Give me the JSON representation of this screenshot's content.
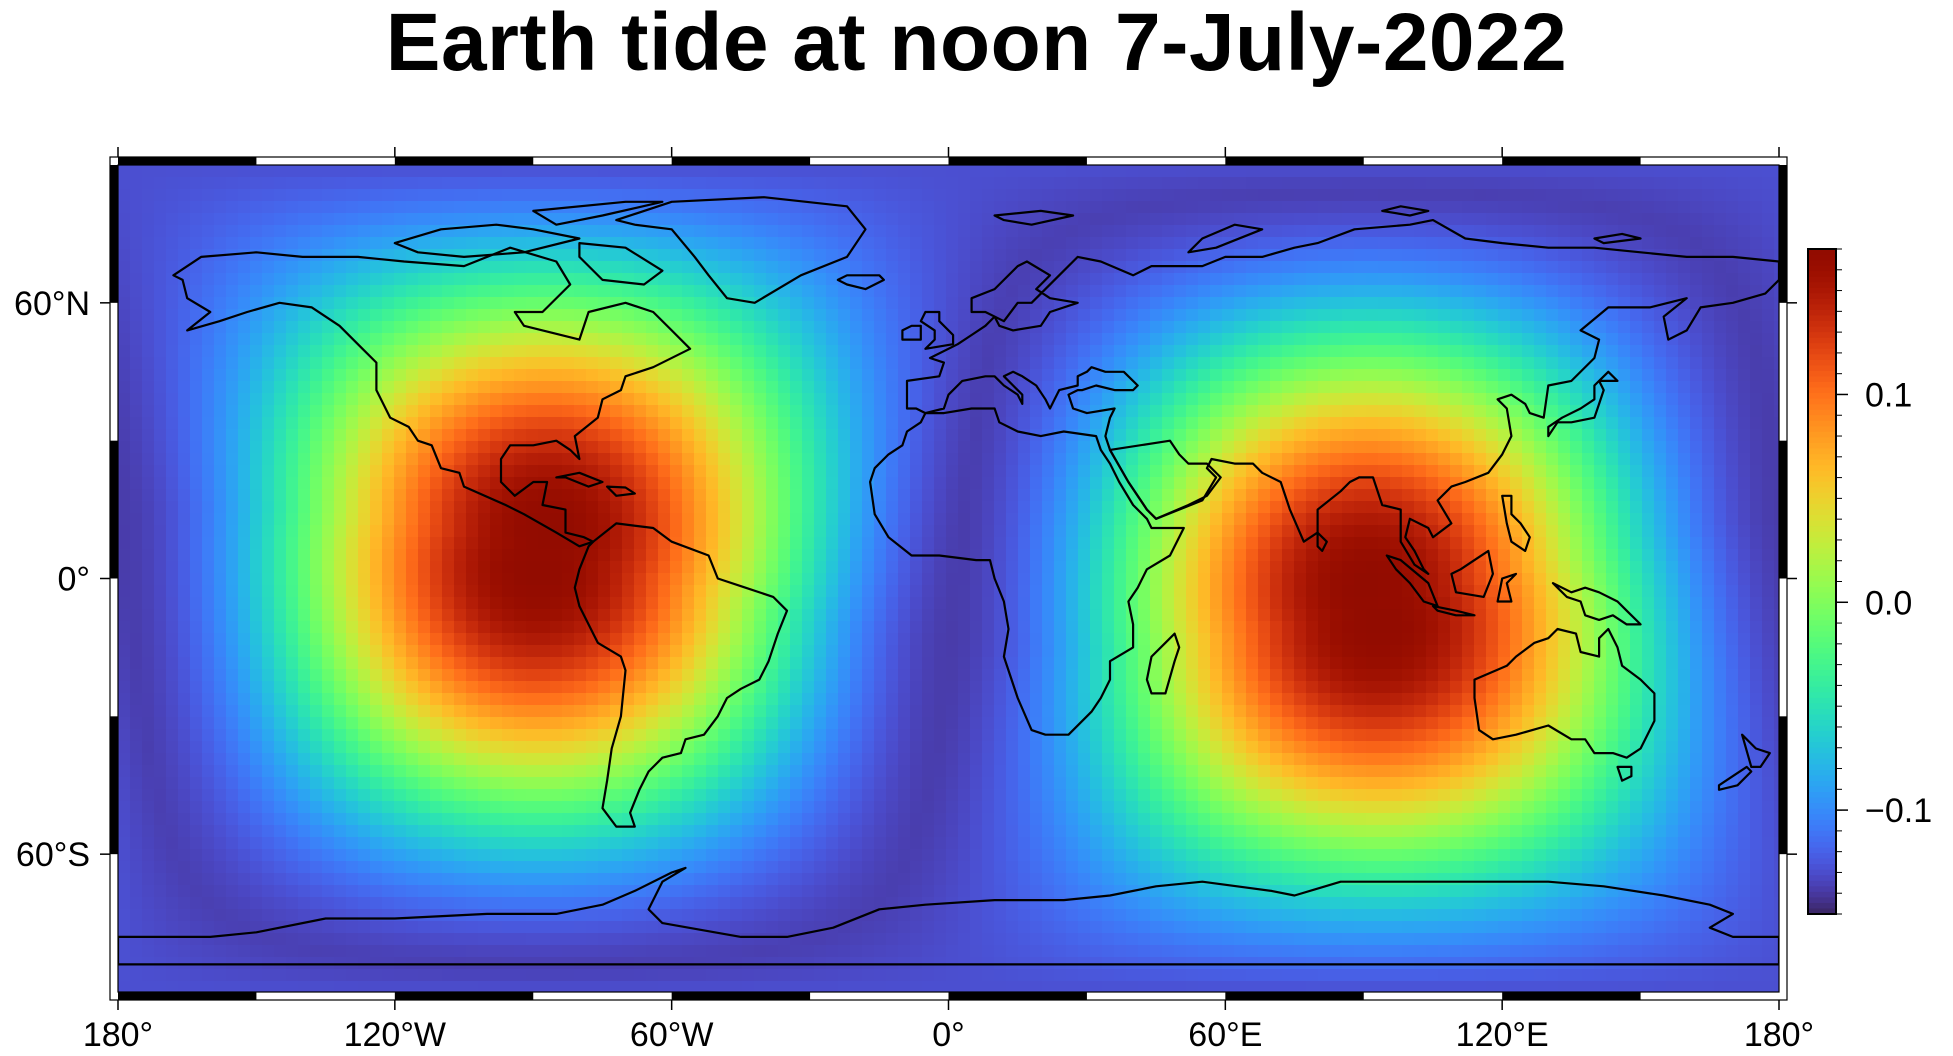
{
  "title": "Earth tide at noon 7-July-2022",
  "map": {
    "projection": "equirectangular",
    "lon_range": [
      -180,
      180
    ],
    "lat_range": [
      -90,
      90
    ],
    "frame_style": "checkerboard",
    "x_ticks": [
      {
        "lon": -180,
        "label": "180°"
      },
      {
        "lon": -120,
        "label": "120°W"
      },
      {
        "lon": -60,
        "label": "60°W"
      },
      {
        "lon": 0,
        "label": "0°"
      },
      {
        "lon": 60,
        "label": "60°E"
      },
      {
        "lon": 120,
        "label": "120°E"
      },
      {
        "lon": 180,
        "label": "180°"
      }
    ],
    "y_ticks": [
      {
        "lat": 60,
        "label": "60°N"
      },
      {
        "lat": 0,
        "label": "0°"
      },
      {
        "lat": -60,
        "label": "60°S"
      }
    ],
    "field": {
      "description_colormap": "turbo",
      "value_range": [
        -0.15,
        0.17
      ],
      "bulges": [
        {
          "lon": -89,
          "lat": 2
        },
        {
          "lon": 93,
          "lat": -10
        }
      ]
    }
  },
  "colorbar": {
    "range": [
      -0.15,
      0.17
    ],
    "ticks": [
      {
        "value": 0.1,
        "label": "0.1"
      },
      {
        "value": 0.0,
        "label": "0.0"
      },
      {
        "value": -0.1,
        "label": "−0.1"
      }
    ]
  },
  "colors": {
    "frame": "#000000",
    "coast": "#000000"
  }
}
